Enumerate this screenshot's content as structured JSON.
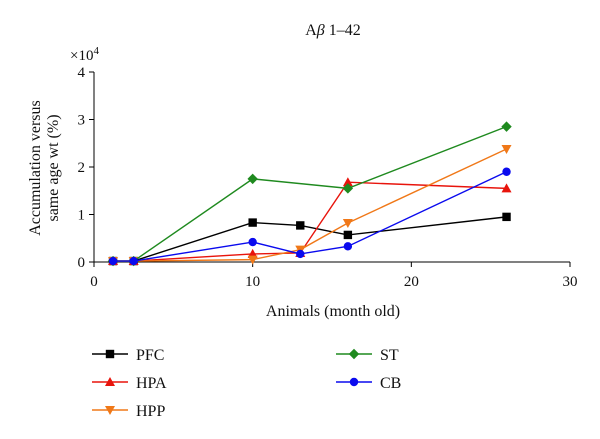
{
  "chart_data": {
    "type": "line",
    "title_prefix": "A",
    "title_beta": "β",
    "title_suffix": " 1–42",
    "xlabel": "Animals (month old)",
    "ylabel_line1": "Accumulation versus",
    "ylabel_line2": "same age wt (%)",
    "y_multiplier_base": "×10",
    "y_multiplier_exp": "4",
    "xlim": [
      0,
      30
    ],
    "ylim": [
      0,
      4
    ],
    "xticks": [
      0,
      10,
      20,
      30
    ],
    "yticks": [
      0,
      1,
      2,
      3,
      4
    ],
    "grid": false,
    "legend_position": "bottom",
    "series": [
      {
        "name": "PFC",
        "color": "#000000",
        "marker": "square",
        "x": [
          1.2,
          2.5,
          10,
          13,
          16,
          26
        ],
        "y": [
          0.02,
          0.02,
          0.83,
          0.77,
          0.57,
          0.95
        ]
      },
      {
        "name": "HPA",
        "color": "#e8140c",
        "marker": "triangle-up",
        "x": [
          1.2,
          2.5,
          10,
          13,
          16,
          26
        ],
        "y": [
          0.02,
          0.02,
          0.17,
          0.19,
          1.68,
          1.55
        ]
      },
      {
        "name": "HPP",
        "color": "#f07818",
        "marker": "triangle-down",
        "x": [
          1.2,
          2.5,
          10,
          13,
          16,
          26
        ],
        "y": [
          0.02,
          0.02,
          0.05,
          0.26,
          0.82,
          2.38
        ]
      },
      {
        "name": "ST",
        "color": "#1f8a1f",
        "marker": "diamond",
        "x": [
          1.2,
          2.5,
          10,
          16,
          26
        ],
        "y": [
          0.02,
          0.02,
          1.75,
          1.55,
          2.85
        ]
      },
      {
        "name": "CB",
        "color": "#0a0aee",
        "marker": "circle",
        "x": [
          1.2,
          2.5,
          10,
          13,
          16,
          26
        ],
        "y": [
          0.02,
          0.02,
          0.42,
          0.17,
          0.33,
          1.9
        ]
      }
    ]
  }
}
